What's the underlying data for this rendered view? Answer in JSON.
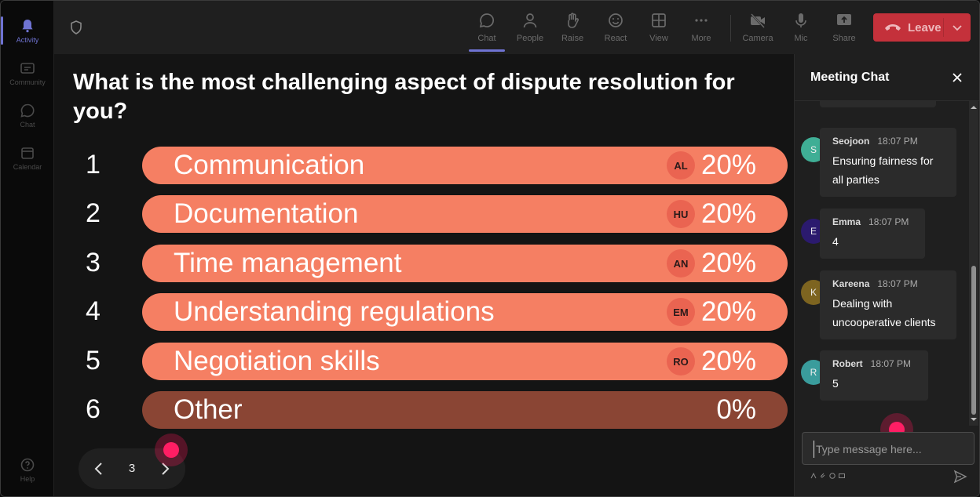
{
  "rail": {
    "items": [
      {
        "label": "Activity",
        "icon": "bell-icon",
        "active": true
      },
      {
        "label": "Community",
        "icon": "community-icon",
        "active": false
      },
      {
        "label": "Chat",
        "icon": "chat-icon",
        "active": false
      },
      {
        "label": "Calendar",
        "icon": "calendar-icon",
        "active": false
      }
    ],
    "help": "Help"
  },
  "toolbar": {
    "chat": "Chat",
    "people": "People",
    "raise": "Raise",
    "react": "React",
    "view": "View",
    "more": "More",
    "camera": "Camera",
    "mic": "Mic",
    "share": "Share",
    "leave": "Leave"
  },
  "poll": {
    "question": "What is the most challenging aspect of dispute resolution for you?",
    "options": [
      {
        "num": "1",
        "label": "Communication",
        "badge": "AL",
        "percent": "20%"
      },
      {
        "num": "2",
        "label": "Documentation",
        "badge": "HU",
        "percent": "20%"
      },
      {
        "num": "3",
        "label": "Time management",
        "badge": "AN",
        "percent": "20%"
      },
      {
        "num": "4",
        "label": "Understanding regulations",
        "badge": "EM",
        "percent": "20%"
      },
      {
        "num": "5",
        "label": "Negotiation skills",
        "badge": "RO",
        "percent": "20%"
      },
      {
        "num": "6",
        "label": "Other",
        "badge": "",
        "percent": "0%"
      }
    ],
    "page": "3"
  },
  "chat": {
    "title": "Meeting Chat",
    "messages": [
      {
        "initial": "S",
        "name": "Seojoon",
        "time": "18:07 PM",
        "text": "Ensuring fairness for all parties",
        "color": "#3fae95"
      },
      {
        "initial": "E",
        "name": "Emma",
        "time": "18:07 PM",
        "text": "4",
        "color": "#2b1a6e"
      },
      {
        "initial": "K",
        "name": "Kareena",
        "time": "18:07 PM",
        "text": "Dealing with uncooperative clients",
        "color": "#7d6420"
      },
      {
        "initial": "R",
        "name": "Robert",
        "time": "18:07 PM",
        "text": "5",
        "color": "#3a9c9c"
      }
    ],
    "composer_placeholder": "Type message here..."
  },
  "colors": {
    "accent": "#6f73d2",
    "bar": "#f57f63",
    "bar_zero": "#8a4534",
    "leave": "#c4313b"
  }
}
